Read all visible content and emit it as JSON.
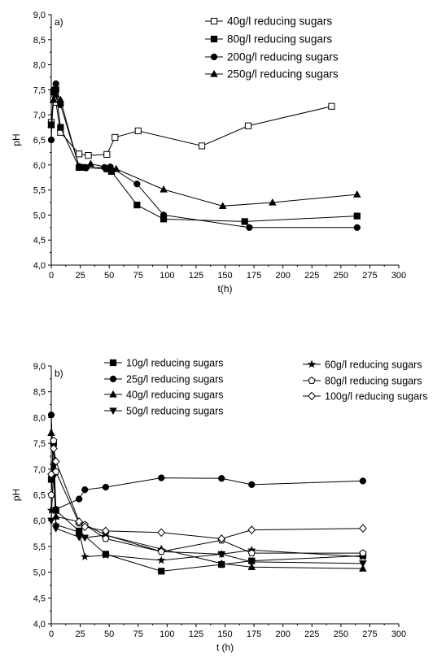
{
  "chart_data": [
    {
      "type": "line",
      "panel_label": "a)",
      "xlabel": "t(h)",
      "ylabel": "pH",
      "xlim": [
        0,
        300
      ],
      "ylim": [
        4.0,
        9.0
      ],
      "x_ticks": [
        0,
        25,
        50,
        75,
        100,
        125,
        150,
        175,
        200,
        225,
        250,
        275,
        300
      ],
      "y_ticks": [
        "4,0",
        "4,5",
        "5,0",
        "5,5",
        "6,0",
        "6,5",
        "7,0",
        "7,5",
        "8,0",
        "8,5",
        "9,0"
      ],
      "legend_position": "top-right",
      "series": [
        {
          "name": "40g/l   reducing sugars",
          "marker": "open-square",
          "x": [
            0,
            2,
            4,
            8,
            24,
            32,
            48,
            55,
            75,
            130,
            170,
            242
          ],
          "y": [
            6.85,
            7.3,
            7.25,
            6.65,
            6.22,
            6.19,
            6.21,
            6.55,
            6.68,
            6.38,
            6.78,
            7.17
          ]
        },
        {
          "name": "80g/l   reducing sugars",
          "marker": "filled-square",
          "x": [
            0,
            2,
            4,
            8,
            24,
            28,
            48,
            52,
            74,
            97,
            167,
            264
          ],
          "y": [
            6.8,
            7.45,
            7.5,
            6.75,
            5.95,
            5.95,
            5.92,
            5.87,
            5.2,
            4.92,
            4.87,
            4.98
          ]
        },
        {
          "name": "200g/l reducing sugars",
          "marker": "filled-circle",
          "x": [
            0,
            2,
            4,
            8,
            24,
            30,
            46,
            51,
            74,
            97,
            171,
            264
          ],
          "y": [
            6.5,
            7.5,
            7.62,
            7.2,
            5.97,
            5.94,
            5.95,
            5.96,
            5.62,
            5.0,
            4.75,
            4.75
          ]
        },
        {
          "name": "250g/l reducing sugars",
          "marker": "filled-triangle",
          "x": [
            0,
            2,
            4,
            8,
            24,
            34,
            56,
            97,
            148,
            191,
            264
          ],
          "y": [
            6.8,
            7.3,
            7.4,
            7.3,
            5.95,
            6.02,
            5.92,
            5.51,
            5.18,
            5.25,
            5.41
          ]
        }
      ]
    },
    {
      "type": "line",
      "panel_label": "b)",
      "xlabel": "t (h)",
      "ylabel": "pH",
      "xlim": [
        0,
        300
      ],
      "ylim": [
        4.0,
        9.0
      ],
      "x_ticks": [
        0,
        25,
        50,
        75,
        100,
        125,
        150,
        175,
        200,
        225,
        250,
        275,
        300
      ],
      "y_ticks": [
        "4,0",
        "4,5",
        "5,0",
        "5,5",
        "6,0",
        "6,5",
        "7,0",
        "7,5",
        "8,0",
        "8,5",
        "9,0"
      ],
      "legend_position": "top",
      "series": [
        {
          "name": "10g/l reducing sugars",
          "marker": "filled-square",
          "x": [
            0,
            2,
            4,
            24,
            47,
            95,
            147,
            173,
            269
          ],
          "y": [
            6.8,
            7.5,
            6.2,
            5.8,
            5.35,
            5.02,
            5.15,
            5.22,
            5.32
          ]
        },
        {
          "name": "25g/l reducing sugars",
          "marker": "filled-circle",
          "x": [
            0,
            2,
            4,
            24,
            29,
            47,
            95,
            147,
            173,
            269
          ],
          "y": [
            8.05,
            6.9,
            6.22,
            6.42,
            6.6,
            6.65,
            6.83,
            6.82,
            6.7,
            6.77
          ]
        },
        {
          "name": "40g/l reducing sugars",
          "marker": "filled-triangle",
          "x": [
            0,
            2,
            4,
            24,
            47,
            95,
            147,
            173,
            269
          ],
          "y": [
            7.7,
            7.0,
            6.08,
            5.98,
            5.72,
            5.45,
            5.17,
            5.1,
            5.07
          ]
        },
        {
          "name": "50g/l reducing sugars",
          "marker": "filled-triangle-down",
          "x": [
            0,
            2,
            4,
            24,
            29,
            47,
            95,
            147,
            173,
            269
          ],
          "y": [
            6.0,
            7.05,
            5.85,
            5.68,
            5.67,
            5.72,
            5.4,
            5.35,
            5.2,
            5.17
          ]
        },
        {
          "name": "60g/l   reducing sugars",
          "marker": "filled-star",
          "x": [
            0,
            2,
            4,
            24,
            29,
            47,
            95,
            147,
            173,
            269
          ],
          "y": [
            6.2,
            6.9,
            5.92,
            5.78,
            5.3,
            5.33,
            5.23,
            5.35,
            5.43,
            5.3
          ]
        },
        {
          "name": "80g/l   reducing sugars",
          "marker": "open-pentagon",
          "x": [
            0,
            2,
            4,
            24,
            29,
            47,
            95,
            147,
            173,
            269
          ],
          "y": [
            6.5,
            7.55,
            6.95,
            5.95,
            5.92,
            5.65,
            5.4,
            5.62,
            5.37,
            5.37
          ]
        },
        {
          "name": "100g/l reducing sugars",
          "marker": "open-diamond",
          "x": [
            0,
            2,
            4,
            24,
            29,
            47,
            95,
            147,
            173,
            269
          ],
          "y": [
            6.9,
            7.4,
            7.15,
            5.98,
            5.88,
            5.8,
            5.77,
            5.65,
            5.82,
            5.85
          ]
        }
      ]
    }
  ]
}
